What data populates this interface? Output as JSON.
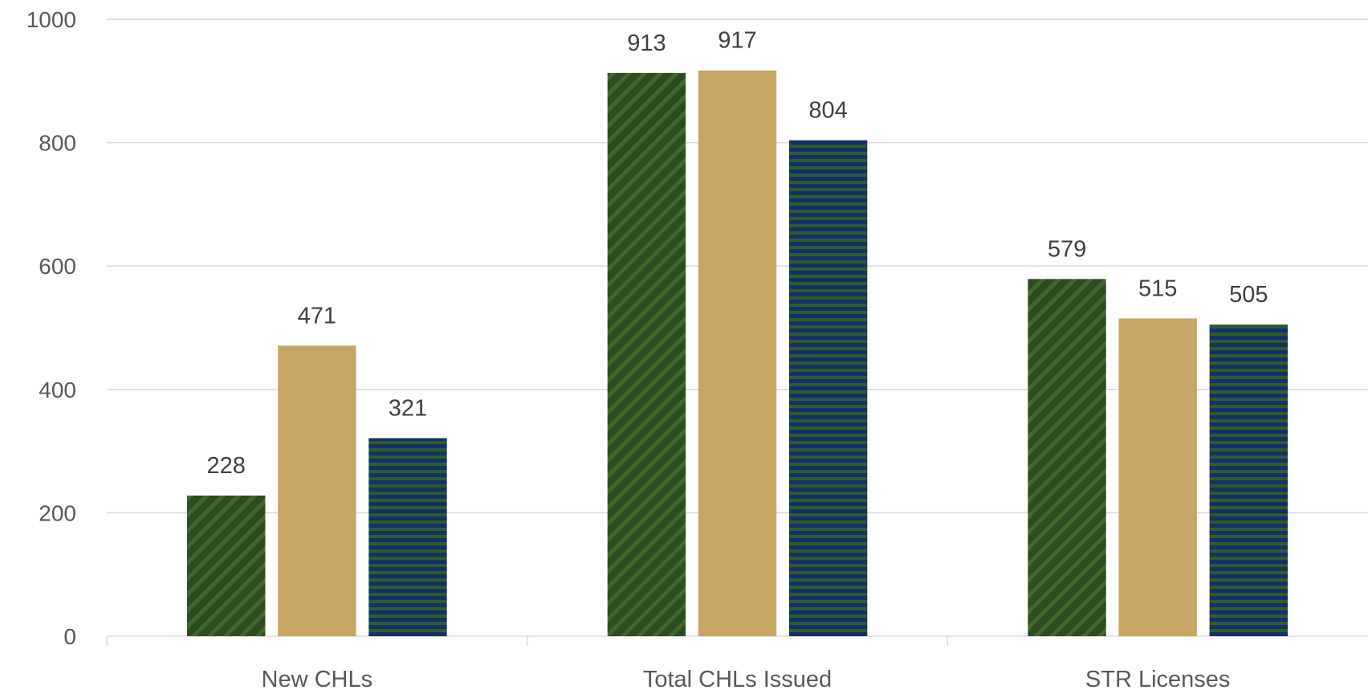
{
  "chart_data": {
    "type": "bar",
    "title": "",
    "xlabel": "",
    "ylabel": "",
    "ylim": [
      0,
      1000
    ],
    "yticks": [
      0,
      200,
      400,
      600,
      800,
      1000
    ],
    "grid": true,
    "legend": "none",
    "categories": [
      "New CHLs",
      "Total CHLs Issued",
      "STR Licenses"
    ],
    "series": [
      {
        "values": [
          228,
          913,
          579
        ],
        "pattern": "diagonal-stripes",
        "colors": [
          "#2d4a20",
          "#3f6a2c"
        ]
      },
      {
        "values": [
          471,
          917,
          515
        ],
        "pattern": "solid",
        "colors": [
          "#c6a662"
        ]
      },
      {
        "values": [
          321,
          804,
          505
        ],
        "pattern": "horizontal-stripes",
        "colors": [
          "#13306b",
          "#2e5d2a"
        ]
      }
    ]
  }
}
